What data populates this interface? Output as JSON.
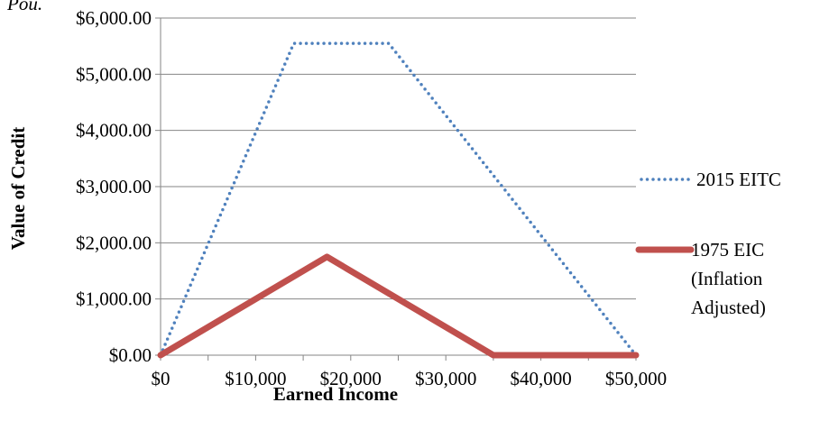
{
  "chart_data": {
    "type": "line",
    "title": "Pou.",
    "xlabel": "Earned Income",
    "ylabel": "Value of Credit",
    "xlim": [
      0,
      50000
    ],
    "ylim": [
      0,
      6000
    ],
    "x_ticks": [
      0,
      5000,
      10000,
      15000,
      20000,
      25000,
      30000,
      35000,
      40000,
      45000,
      50000
    ],
    "x_tick_labels": [
      "$0",
      "$10,000",
      "$20,000",
      "$30,000",
      "$40,000",
      "$50,000"
    ],
    "x_tick_label_values": [
      0,
      10000,
      20000,
      30000,
      40000,
      50000
    ],
    "y_ticks": [
      0,
      1000,
      2000,
      3000,
      4000,
      5000,
      6000
    ],
    "y_tick_labels": [
      "$0.00",
      "$1,000.00",
      "$2,000.00",
      "$3,000.00",
      "$4,000.00",
      "$5,000.00",
      "$6,000.00"
    ],
    "grid": "horizontal",
    "legend_position": "right",
    "series": [
      {
        "name": "2015 EITC",
        "style": "dotted",
        "color": "#4f81bd",
        "x": [
          0,
          14000,
          24000,
          50000
        ],
        "y": [
          0,
          5548,
          5548,
          0
        ]
      },
      {
        "name": "1975 EIC (Inflation Adjusted)",
        "legend_lines": [
          "1975 EIC",
          "(Inflation",
          "Adjusted)"
        ],
        "style": "solid-thick",
        "color": "#c0504d",
        "x": [
          0,
          17500,
          35000,
          50000
        ],
        "y": [
          0,
          1750,
          0,
          0
        ]
      }
    ]
  }
}
